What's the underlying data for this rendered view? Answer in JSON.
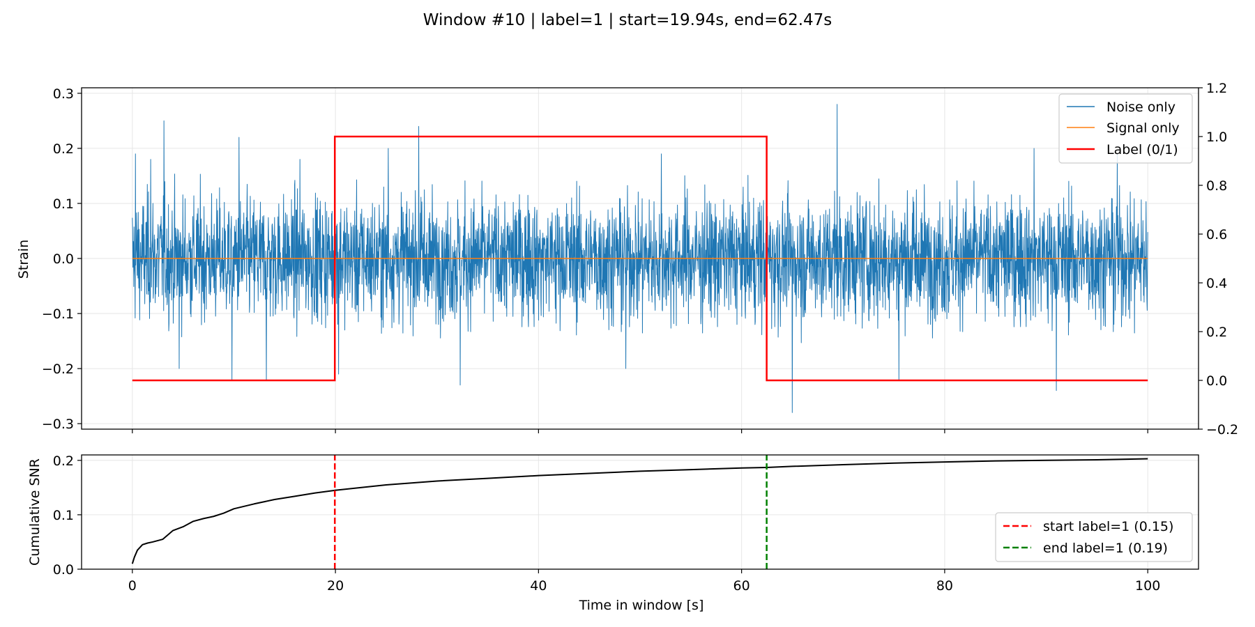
{
  "chart_data": [
    {
      "type": "line",
      "title": "Window #10 | label=1 | start=19.94s, end=62.47s",
      "xlabel": "",
      "ylabel": "Strain",
      "y2label": "",
      "xlim": [
        -5,
        105
      ],
      "ylim": [
        -0.31,
        0.31
      ],
      "y2lim": [
        -0.2,
        1.2
      ],
      "xticks": [
        0,
        20,
        40,
        60,
        80,
        100
      ],
      "yticks": [
        -0.3,
        -0.2,
        -0.1,
        0.0,
        0.1,
        0.2,
        0.3
      ],
      "ytick_labels": [
        "−0.3",
        "−0.2",
        "−0.1",
        "0.0",
        "0.1",
        "0.2",
        "0.3"
      ],
      "y2ticks": [
        -0.2,
        0.0,
        0.2,
        0.4,
        0.6,
        0.8,
        1.0,
        1.2
      ],
      "y2tick_labels": [
        "−0.2",
        "0.0",
        "0.2",
        "0.4",
        "0.6",
        "0.8",
        "1.0",
        "1.2"
      ],
      "grid": true,
      "legend_position": "top-right",
      "series": [
        {
          "name": "Noise only",
          "color": "#1f77b4",
          "kind": "noise",
          "x_range": [
            0,
            100
          ],
          "typical_band": [
            -0.1,
            0.1
          ],
          "typical_peak": 0.16,
          "spikes": [
            {
              "x": 0.3,
              "y": 0.19
            },
            {
              "x": 1.8,
              "y": 0.18
            },
            {
              "x": 3.1,
              "y": 0.25
            },
            {
              "x": 4.6,
              "y": -0.2
            },
            {
              "x": 9.8,
              "y": -0.22
            },
            {
              "x": 10.5,
              "y": 0.22
            },
            {
              "x": 13.2,
              "y": -0.22
            },
            {
              "x": 16.5,
              "y": 0.18
            },
            {
              "x": 20.3,
              "y": -0.21
            },
            {
              "x": 25.2,
              "y": 0.2
            },
            {
              "x": 28.2,
              "y": 0.24
            },
            {
              "x": 32.3,
              "y": -0.23
            },
            {
              "x": 48.6,
              "y": -0.2
            },
            {
              "x": 52.1,
              "y": 0.19
            },
            {
              "x": 65.0,
              "y": -0.28
            },
            {
              "x": 69.4,
              "y": 0.28
            },
            {
              "x": 75.5,
              "y": -0.22
            },
            {
              "x": 88.8,
              "y": 0.2
            },
            {
              "x": 91.0,
              "y": -0.24
            },
            {
              "x": 97.0,
              "y": 0.19
            }
          ]
        },
        {
          "name": "Signal only",
          "color": "#ff7f0e",
          "x": [
            0,
            100
          ],
          "values": [
            0,
            0
          ]
        },
        {
          "name": "Label (0/1)",
          "color": "#ff0000",
          "axis": "right",
          "x": [
            0,
            19.94,
            19.94,
            62.47,
            62.47,
            100
          ],
          "values": [
            0,
            0,
            1,
            1,
            0,
            0
          ]
        }
      ]
    },
    {
      "type": "line",
      "title": "",
      "xlabel": "Time in window [s]",
      "ylabel": "Cumulative SNR",
      "xlim": [
        -5,
        105
      ],
      "ylim": [
        0,
        0.21
      ],
      "xticks": [
        0,
        20,
        40,
        60,
        80,
        100
      ],
      "xtick_labels": [
        "0",
        "20",
        "40",
        "60",
        "80",
        "100"
      ],
      "yticks": [
        0.0,
        0.1,
        0.2
      ],
      "ytick_labels": [
        "0.0",
        "0.1",
        "0.2"
      ],
      "grid": true,
      "legend_position": "lower-right",
      "series": [
        {
          "name": "",
          "color": "#000000",
          "x": [
            0,
            0.2,
            0.5,
            1,
            1.5,
            2,
            3,
            4,
            5,
            6,
            7,
            8,
            9,
            10,
            12,
            14,
            16,
            18,
            20,
            22,
            25,
            30,
            35,
            40,
            45,
            50,
            55,
            60,
            62.47,
            65,
            70,
            75,
            80,
            85,
            90,
            95,
            100
          ],
          "values": [
            0.01,
            0.022,
            0.035,
            0.045,
            0.048,
            0.05,
            0.055,
            0.071,
            0.078,
            0.088,
            0.093,
            0.097,
            0.103,
            0.111,
            0.12,
            0.128,
            0.134,
            0.14,
            0.145,
            0.149,
            0.155,
            0.162,
            0.167,
            0.172,
            0.176,
            0.18,
            0.183,
            0.186,
            0.187,
            0.189,
            0.192,
            0.195,
            0.197,
            0.199,
            0.2,
            0.201,
            0.203
          ]
        },
        {
          "name": "start label=1 (0.15)",
          "color": "#ff0000",
          "style": "dashed",
          "x": [
            19.94,
            19.94
          ],
          "values": [
            0,
            0.21
          ]
        },
        {
          "name": "end label=1 (0.19)",
          "color": "#008000",
          "style": "dashed",
          "x": [
            62.47,
            62.47
          ],
          "values": [
            0,
            0.21
          ]
        }
      ]
    }
  ]
}
